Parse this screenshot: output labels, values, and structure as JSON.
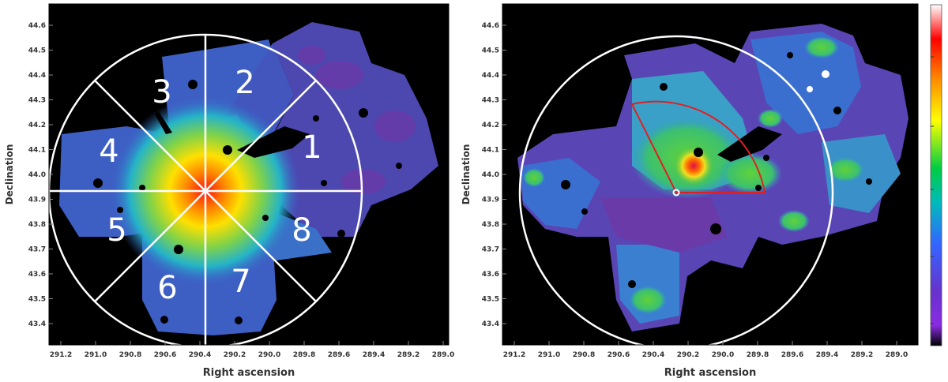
{
  "panels": [
    {
      "id": "left",
      "xlabel": "Right ascension",
      "ylabel": "Declination",
      "xticks": [
        "291.2",
        "291.0",
        "290.8",
        "290.6",
        "290.4",
        "290.2",
        "290.0",
        "289.8",
        "289.6",
        "289.4",
        "289.2",
        "289.0"
      ],
      "yticks": [
        "44.6",
        "44.5",
        "44.4",
        "44.3",
        "44.2",
        "44.1",
        "44.0",
        "43.9",
        "43.8",
        "43.7",
        "43.6",
        "43.5",
        "43.4"
      ],
      "sectors": [
        "1",
        "2",
        "3",
        "4",
        "5",
        "6",
        "7",
        "8"
      ]
    },
    {
      "id": "right",
      "xlabel": "Right ascension",
      "ylabel": "Declination",
      "xticks": [
        "291.2",
        "291.0",
        "290.8",
        "290.6",
        "290.4",
        "290.2",
        "290.0",
        "289.8",
        "289.6",
        "289.4",
        "289.2",
        "289.0"
      ],
      "yticks": [
        "44.6",
        "44.5",
        "44.4",
        "44.3",
        "44.2",
        "44.1",
        "44.0",
        "43.9",
        "43.8",
        "43.7",
        "43.6",
        "43.5",
        "43.4"
      ]
    }
  ],
  "colorbar": {
    "colors": [
      "#ffffff",
      "#ff0000",
      "#ff8c00",
      "#ffff00",
      "#00cc44",
      "#00bbbb",
      "#3366ff",
      "#6633cc",
      "#8a2be2",
      "#000000"
    ]
  }
}
